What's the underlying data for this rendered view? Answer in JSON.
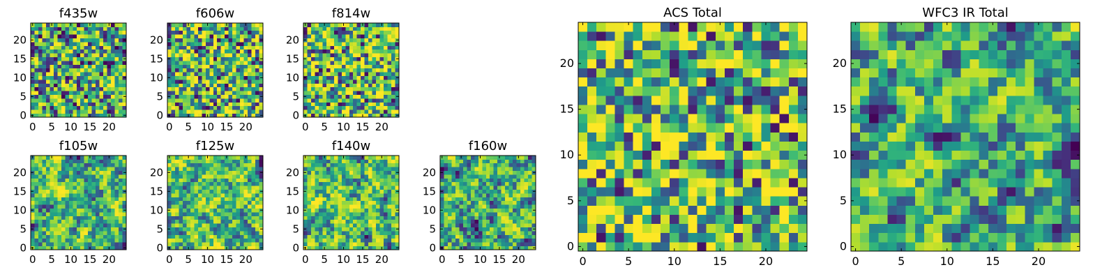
{
  "chart_data": [
    {
      "type": "heatmap",
      "title": "f435w",
      "x_ticks": [
        0,
        5,
        10,
        15,
        20
      ],
      "y_ticks": [
        0,
        5,
        10,
        15,
        20
      ],
      "xlim": [
        -0.5,
        24.5
      ],
      "ylim": [
        -0.5,
        24.5
      ],
      "grid_size": 25,
      "colormap": "viridis",
      "seed": 11,
      "smooth": 0,
      "bias": 0.0
    },
    {
      "type": "heatmap",
      "title": "f606w",
      "x_ticks": [
        0,
        5,
        10,
        15,
        20
      ],
      "y_ticks": [
        0,
        5,
        10,
        15,
        20
      ],
      "xlim": [
        -0.5,
        24.5
      ],
      "ylim": [
        -0.5,
        24.5
      ],
      "grid_size": 25,
      "colormap": "viridis",
      "seed": 23,
      "smooth": 0,
      "bias": 0.02
    },
    {
      "type": "heatmap",
      "title": "f814w",
      "x_ticks": [
        0,
        5,
        10,
        15,
        20
      ],
      "y_ticks": [
        0,
        5,
        10,
        15,
        20
      ],
      "xlim": [
        -0.5,
        24.5
      ],
      "ylim": [
        -0.5,
        24.5
      ],
      "grid_size": 25,
      "colormap": "viridis",
      "seed": 37,
      "smooth": 0,
      "bias": 0.03
    },
    {
      "type": "heatmap",
      "title": "f105w",
      "x_ticks": [
        0,
        5,
        10,
        15,
        20
      ],
      "y_ticks": [
        0,
        5,
        10,
        15,
        20
      ],
      "xlim": [
        -0.5,
        24.5
      ],
      "ylim": [
        -0.5,
        24.5
      ],
      "grid_size": 25,
      "colormap": "viridis",
      "seed": 41,
      "smooth": 1,
      "bias": 0.02
    },
    {
      "type": "heatmap",
      "title": "f125w",
      "x_ticks": [
        0,
        5,
        10,
        15,
        20
      ],
      "y_ticks": [
        0,
        5,
        10,
        15,
        20
      ],
      "xlim": [
        -0.5,
        24.5
      ],
      "ylim": [
        -0.5,
        24.5
      ],
      "grid_size": 25,
      "colormap": "viridis",
      "seed": 53,
      "smooth": 1,
      "bias": 0.02
    },
    {
      "type": "heatmap",
      "title": "f140w",
      "x_ticks": [
        0,
        5,
        10,
        15,
        20
      ],
      "y_ticks": [
        0,
        5,
        10,
        15,
        20
      ],
      "xlim": [
        -0.5,
        24.5
      ],
      "ylim": [
        -0.5,
        24.5
      ],
      "grid_size": 25,
      "colormap": "viridis",
      "seed": 67,
      "smooth": 1,
      "bias": 0.03
    },
    {
      "type": "heatmap",
      "title": "f160w",
      "x_ticks": [
        0,
        5,
        10,
        15,
        20
      ],
      "y_ticks": [
        0,
        5,
        10,
        15,
        20
      ],
      "xlim": [
        -0.5,
        24.5
      ],
      "ylim": [
        -0.5,
        24.5
      ],
      "grid_size": 25,
      "colormap": "viridis",
      "seed": 79,
      "smooth": 1,
      "bias": -0.02
    },
    {
      "type": "heatmap",
      "title": "ACS Total",
      "x_ticks": [
        0,
        5,
        10,
        15,
        20
      ],
      "y_ticks": [
        0,
        5,
        10,
        15,
        20
      ],
      "xlim": [
        -0.5,
        24.5
      ],
      "ylim": [
        -0.5,
        24.5
      ],
      "grid_size": 25,
      "colormap": "viridis",
      "seed": 97,
      "smooth": 0,
      "bias": 0.05
    },
    {
      "type": "heatmap",
      "title": "WFC3 IR Total",
      "x_ticks": [
        0,
        5,
        10,
        15,
        20
      ],
      "y_ticks": [
        0,
        5,
        10,
        15,
        20
      ],
      "xlim": [
        -0.5,
        24.5
      ],
      "ylim": [
        -0.5,
        24.5
      ],
      "grid_size": 25,
      "colormap": "viridis",
      "seed": 113,
      "smooth": 1,
      "bias": -0.02
    }
  ]
}
